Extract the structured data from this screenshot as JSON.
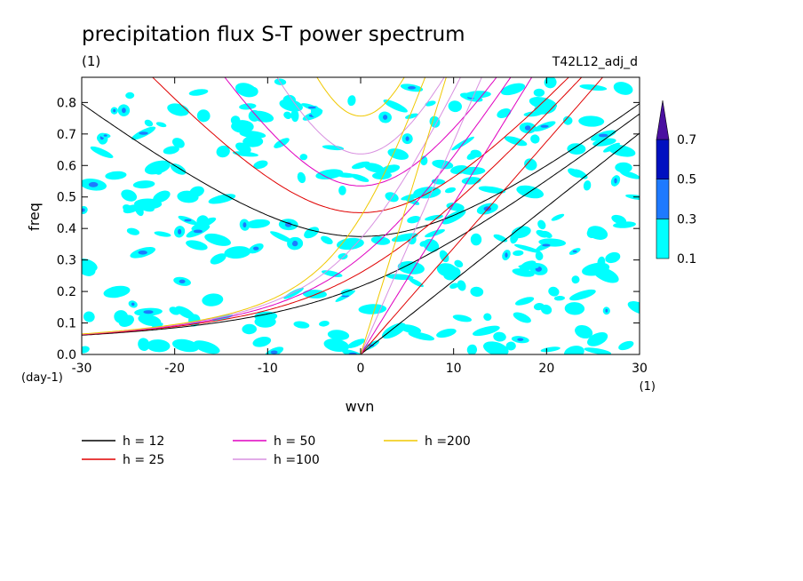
{
  "chart_data": {
    "type": "contour",
    "title": "precipitation flux S-T power spectrum",
    "subtitle": "(1)",
    "run_label": "T42L12_adj_d",
    "xlabel": "wvn",
    "x_unit": "(1)",
    "ylabel": "freq",
    "y_unit": "(day-1)",
    "xlim": [
      -30,
      30
    ],
    "ylim": [
      0,
      0.88
    ],
    "x_ticks": [
      "-30",
      "-20",
      "-10",
      "0",
      "10",
      "20",
      "30"
    ],
    "y_ticks": [
      "0.0",
      "0.1",
      "0.2",
      "0.3",
      "0.4",
      "0.5",
      "0.6",
      "0.7",
      "0.8"
    ],
    "colorbar": {
      "levels": [
        "0.1",
        "0.3",
        "0.5",
        "0.7"
      ],
      "colors": [
        "#00ffff",
        "#1e7aff",
        "#0010c0",
        "#4a10a0"
      ]
    },
    "dispersion_curves": [
      {
        "name": "h = 12",
        "h": 12,
        "color": "#000000"
      },
      {
        "name": "h = 25",
        "h": 25,
        "color": "#e00000"
      },
      {
        "name": "h = 50",
        "h": 50,
        "color": "#e000c0"
      },
      {
        "name": "h =100",
        "h": 100,
        "color": "#d890e0"
      },
      {
        "name": "h =200",
        "h": 200,
        "color": "#f0c800"
      }
    ]
  }
}
